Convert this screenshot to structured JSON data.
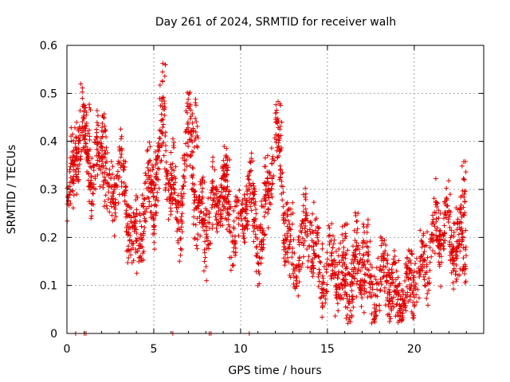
{
  "chart_data": {
    "type": "scatter",
    "title": "Day 261 of 2024, SRMTID for receiver walh",
    "xlabel": "GPS time / hours",
    "ylabel": "SRMTID / TECUs",
    "xlim": [
      0,
      24
    ],
    "ylim": [
      0,
      0.6
    ],
    "x_ticks": [
      0,
      5,
      10,
      15,
      20
    ],
    "y_ticks": [
      0,
      0.1,
      0.2,
      0.3,
      0.4,
      0.5,
      0.6
    ],
    "x_tick_labels": [
      "0",
      "5",
      "10",
      "15",
      "20"
    ],
    "y_tick_labels": [
      "0",
      "0.1",
      "0.2",
      "0.3",
      "0.4",
      "0.5",
      "0.6"
    ],
    "grid": true,
    "marker": "+",
    "marker_color": "#e00000",
    "series": [
      {
        "name": "SRMTID",
        "envelope": [
          {
            "x": 0.0,
            "y": 0.25
          },
          {
            "x": 1.0,
            "y": 0.45
          },
          {
            "x": 1.5,
            "y": 0.3
          },
          {
            "x": 2.0,
            "y": 0.38
          },
          {
            "x": 2.5,
            "y": 0.3
          },
          {
            "x": 3.0,
            "y": 0.36
          },
          {
            "x": 3.5,
            "y": 0.22
          },
          {
            "x": 4.0,
            "y": 0.2
          },
          {
            "x": 4.5,
            "y": 0.28
          },
          {
            "x": 5.0,
            "y": 0.25
          },
          {
            "x": 5.5,
            "y": 0.45
          },
          {
            "x": 6.0,
            "y": 0.3
          },
          {
            "x": 6.5,
            "y": 0.2
          },
          {
            "x": 7.0,
            "y": 0.46
          },
          {
            "x": 7.5,
            "y": 0.25
          },
          {
            "x": 8.0,
            "y": 0.2
          },
          {
            "x": 8.5,
            "y": 0.3
          },
          {
            "x": 9.0,
            "y": 0.3
          },
          {
            "x": 9.5,
            "y": 0.18
          },
          {
            "x": 10.0,
            "y": 0.27
          },
          {
            "x": 10.5,
            "y": 0.3
          },
          {
            "x": 11.0,
            "y": 0.15
          },
          {
            "x": 11.5,
            "y": 0.3
          },
          {
            "x": 12.0,
            "y": 0.42
          },
          {
            "x": 12.5,
            "y": 0.22
          },
          {
            "x": 13.0,
            "y": 0.18
          },
          {
            "x": 14.0,
            "y": 0.2
          },
          {
            "x": 14.5,
            "y": 0.17
          },
          {
            "x": 15.0,
            "y": 0.12
          },
          {
            "x": 16.0,
            "y": 0.12
          },
          {
            "x": 17.0,
            "y": 0.12
          },
          {
            "x": 18.0,
            "y": 0.1
          },
          {
            "x": 19.0,
            "y": 0.1
          },
          {
            "x": 19.5,
            "y": 0.07
          },
          {
            "x": 20.0,
            "y": 0.09
          },
          {
            "x": 20.5,
            "y": 0.18
          },
          {
            "x": 21.0,
            "y": 0.17
          },
          {
            "x": 21.5,
            "y": 0.2
          },
          {
            "x": 22.0,
            "y": 0.25
          },
          {
            "x": 22.5,
            "y": 0.17
          },
          {
            "x": 23.0,
            "y": 0.15
          }
        ],
        "spread": 0.045,
        "peaks": [
          {
            "x": 5.5,
            "y": 0.565
          },
          {
            "x": 7.1,
            "y": 0.51
          },
          {
            "x": 7.4,
            "y": 0.49
          },
          {
            "x": 2.1,
            "y": 0.46
          },
          {
            "x": 1.2,
            "y": 0.48
          },
          {
            "x": 12.2,
            "y": 0.48
          },
          {
            "x": 22.8,
            "y": 0.36
          },
          {
            "x": 5.0,
            "y": 0.38
          },
          {
            "x": 9.2,
            "y": 0.39
          },
          {
            "x": 17.2,
            "y": 0.24
          },
          {
            "x": 16.0,
            "y": 0.23
          }
        ],
        "zero_markers": [
          0.5,
          1.0,
          1.1,
          6.1,
          8.2,
          8.3,
          10.5
        ],
        "x_range": [
          0.0,
          23.0
        ]
      }
    ]
  }
}
